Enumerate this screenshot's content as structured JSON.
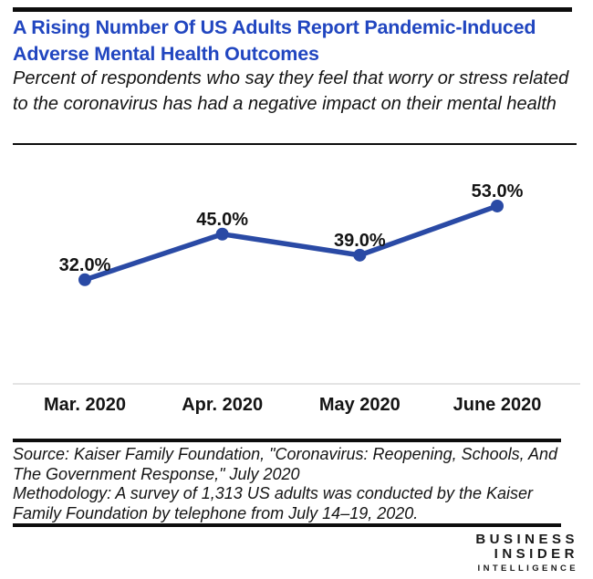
{
  "header": {
    "title": "A Rising Number Of US Adults Report Pandemic-Induced Adverse Mental Health Outcomes",
    "subtitle": "Percent of respondents who say they feel that worry or stress related to the coronavirus has had a negative impact on their mental health"
  },
  "chart_data": {
    "type": "line",
    "categories": [
      "Mar. 2020",
      "Apr. 2020",
      "May 2020",
      "June 2020"
    ],
    "values": [
      32.0,
      45.0,
      39.0,
      53.0
    ],
    "point_labels": [
      "32.0%",
      "45.0%",
      "39.0%",
      "53.0%"
    ],
    "title": "",
    "xlabel": "",
    "ylabel": "",
    "ylim": [
      0,
      65
    ],
    "grid": false,
    "legend": false,
    "line_color": "#2a4aa5",
    "marker_color": "#2a4aa5",
    "axis_color": "#dcdcdc",
    "label_color": "#141414"
  },
  "footer": {
    "source": "Source: Kaiser Family Foundation, \"Coronavirus: Reopening, Schools, And The Government Response,\" July 2020",
    "methodology": "Methodology: A survey of 1,313 US adults was conducted by the Kaiser Family Foundation by telephone from July 14–19, 2020."
  },
  "branding": {
    "line1": "BUSINESS",
    "line2": "INSIDER",
    "line3": "INTELLIGENCE"
  },
  "colors": {
    "title_blue": "#2146c0",
    "bar_black": "#0d0d0d"
  }
}
